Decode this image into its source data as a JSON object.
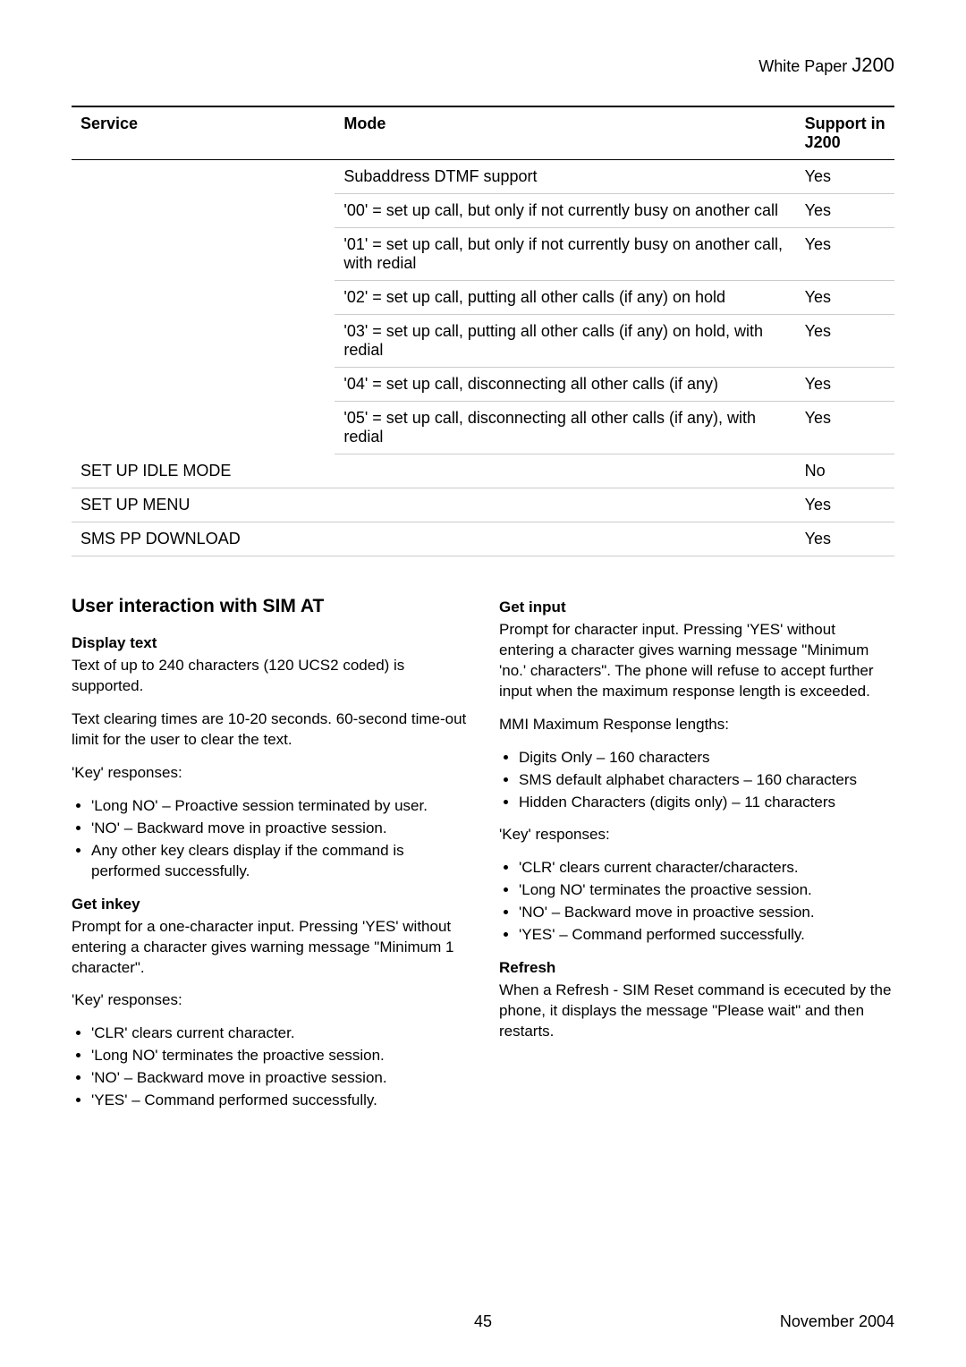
{
  "header": {
    "label": "White Paper",
    "model": "J200"
  },
  "table": {
    "headers": {
      "service": "Service",
      "mode": "Mode",
      "support": "Support in J200"
    },
    "rows": [
      {
        "service": "",
        "mode": "Subaddress DTMF support",
        "support": "Yes"
      },
      {
        "service": "",
        "mode": "'00' = set up call, but only if not currently busy on another call",
        "support": "Yes"
      },
      {
        "service": "",
        "mode": "'01' = set up call, but only if not currently busy on another call, with redial",
        "support": "Yes"
      },
      {
        "service": "",
        "mode": "'02' = set up call, putting all other calls (if any) on hold",
        "support": "Yes"
      },
      {
        "service": "",
        "mode": "'03' = set up call, putting all other calls (if any) on hold, with redial",
        "support": "Yes"
      },
      {
        "service": "",
        "mode": "'04' = set up call, disconnecting all other calls (if any)",
        "support": "Yes"
      },
      {
        "service": "",
        "mode": "'05' = set up call, disconnecting all other calls (if any), with redial",
        "support": "Yes"
      },
      {
        "service": "SET UP IDLE MODE",
        "mode": "",
        "support": "No",
        "span": true
      },
      {
        "service": "SET UP MENU",
        "mode": "",
        "support": "Yes",
        "span": true
      },
      {
        "service": "SMS PP DOWNLOAD",
        "mode": "",
        "support": "Yes",
        "span": true
      }
    ]
  },
  "section_title": "User interaction with SIM AT",
  "left": {
    "display_text_h": "Display text",
    "display_text_p1": "Text of up to 240 characters (120 UCS2 coded) is supported.",
    "display_text_p2": "Text clearing times are 10-20 seconds. 60-second time-out limit for the user to clear the text.",
    "key_label": "'Key' responses:",
    "display_keys": [
      "'Long NO' – Proactive session terminated by user.",
      "'NO' – Backward move in proactive session.",
      "Any other key clears display if the command is performed successfully."
    ],
    "get_inkey_h": "Get inkey",
    "get_inkey_p": "Prompt for a one-character input. Pressing 'YES' without entering a character gives warning message \"Minimum 1 character\".",
    "inkey_keys": [
      "'CLR' clears current character.",
      "'Long NO' terminates the proactive session.",
      "'NO' – Backward move in proactive session.",
      "'YES' – Command performed successfully."
    ]
  },
  "right": {
    "get_input_h": "Get input",
    "get_input_p": "Prompt for character input. Pressing 'YES' without entering a character gives warning message \"Minimum 'no.' characters\". The phone will refuse to accept further input when the maximum response length is exceeded.",
    "mmi_label": "MMI Maximum Response lengths:",
    "mmi_items": [
      "Digits Only – 160 characters",
      "SMS default alphabet characters – 160 characters",
      "Hidden Characters (digits only) – 11 characters"
    ],
    "key_label": "'Key' responses:",
    "input_keys": [
      "'CLR' clears current character/characters.",
      "'Long NO' terminates the proactive session.",
      "'NO' – Backward move in proactive session.",
      "'YES' – Command performed successfully."
    ],
    "refresh_h": "Refresh",
    "refresh_p": "When a Refresh - SIM Reset command is ececuted by the phone, it displays the message \"Please wait\" and then restarts."
  },
  "footer": {
    "page": "45",
    "date": "November 2004"
  }
}
